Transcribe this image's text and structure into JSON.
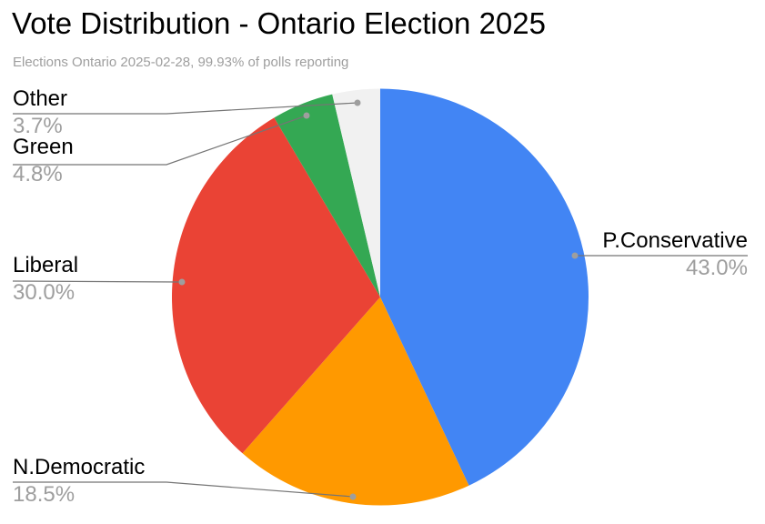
{
  "header": {
    "title": "Vote Distribution - Ontario Election 2025",
    "subtitle": "Elections Ontario 2025-02-28, 99.93% of polls reporting"
  },
  "chart_data": {
    "type": "pie",
    "title": "Vote Distribution - Ontario Election 2025",
    "subtitle": "Elections Ontario 2025-02-28, 99.93% of polls reporting",
    "unit": "%",
    "start_angle_deg": 0,
    "direction": "clockwise",
    "legend_position": "outside-callouts",
    "slices": [
      {
        "label": "P.Conservative",
        "value": 43.0,
        "pct_label": "43.0%",
        "color": "#4285F4"
      },
      {
        "label": "N.Democratic",
        "value": 18.5,
        "pct_label": "18.5%",
        "color": "#FF9900"
      },
      {
        "label": "Liberal",
        "value": 30.0,
        "pct_label": "30.0%",
        "color": "#EA4335"
      },
      {
        "label": "Green",
        "value": 4.8,
        "pct_label": "4.8%",
        "color": "#34A853"
      },
      {
        "label": "Other",
        "value": 3.7,
        "pct_label": "3.7%",
        "color": "#F1F1F1"
      }
    ],
    "colors": {
      "label_text": "#000000",
      "pct_text": "#9e9e9e",
      "leader_line": "#757575",
      "dot": "#9e9e9e",
      "background": "#ffffff"
    }
  }
}
